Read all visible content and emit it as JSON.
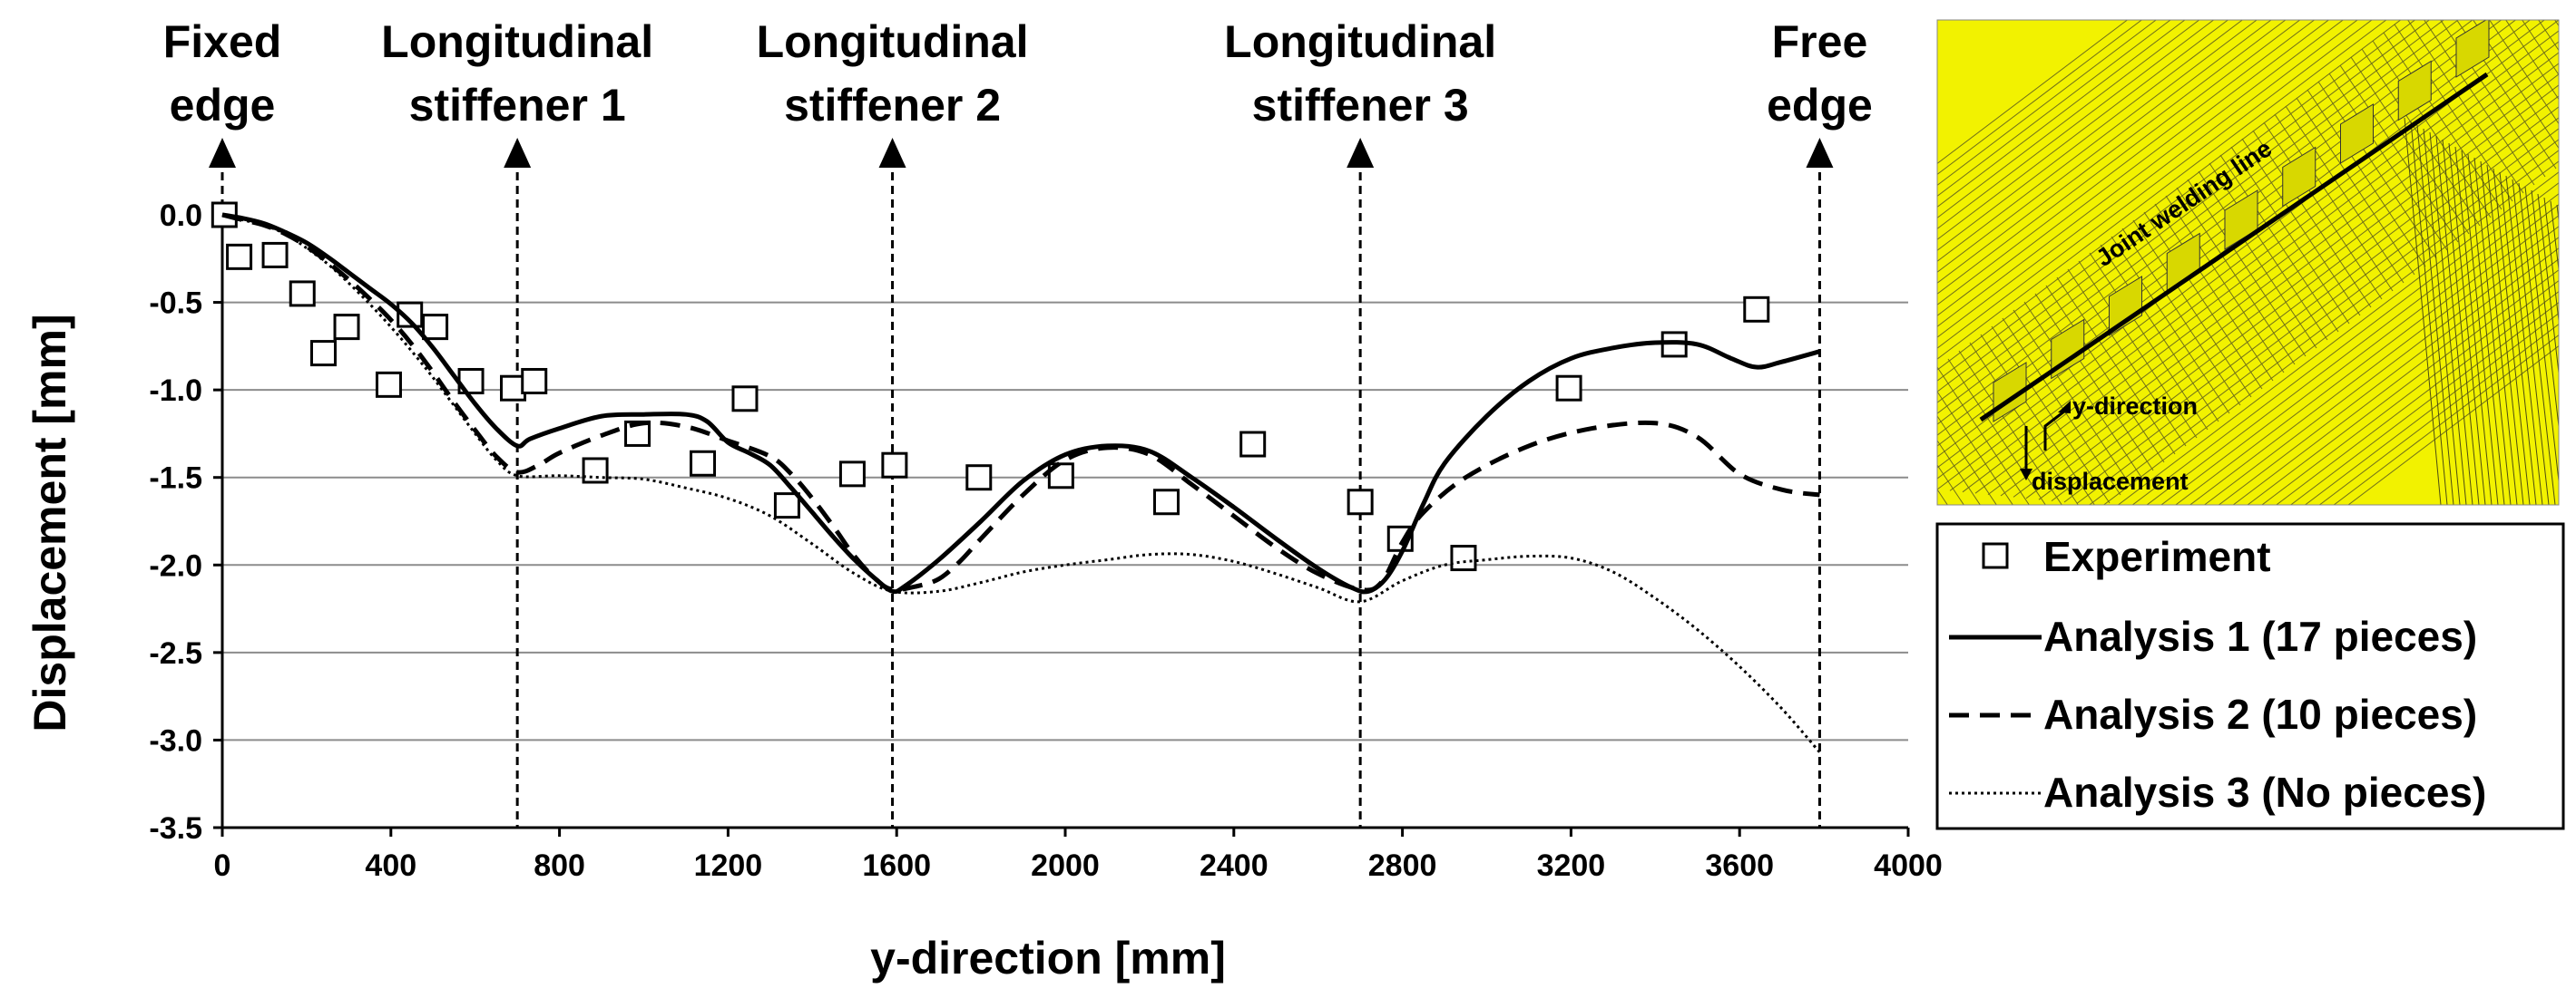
{
  "chart_data": {
    "type": "line",
    "xlabel": "y-direction [mm]",
    "ylabel": "Displacement [mm]",
    "xlim": [
      0,
      4000
    ],
    "ylim": [
      -3.5,
      0
    ],
    "x_ticks": [
      "0",
      "400",
      "800",
      "1200",
      "1600",
      "2000",
      "2400",
      "2800",
      "3200",
      "3600",
      "4000"
    ],
    "y_ticks": [
      "0.0",
      "-0.5",
      "-1.0",
      "-1.5",
      "-2.0",
      "-2.5",
      "-3.0",
      "-3.5"
    ],
    "markers": [
      {
        "x": 0,
        "lines": [
          "Fixed",
          "edge"
        ]
      },
      {
        "x": 700,
        "lines": [
          "Longitudinal",
          "stiffener 1"
        ]
      },
      {
        "x": 1590,
        "lines": [
          "Longitudinal",
          "stiffener 2"
        ]
      },
      {
        "x": 2700,
        "lines": [
          "Longitudinal",
          "stiffener 3"
        ]
      },
      {
        "x": 3790,
        "lines": [
          "Free",
          "edge"
        ]
      }
    ],
    "series": [
      {
        "name": "Experiment",
        "style": "square",
        "points": [
          [
            5,
            0.0
          ],
          [
            40,
            -0.24
          ],
          [
            125,
            -0.23
          ],
          [
            190,
            -0.45
          ],
          [
            240,
            -0.79
          ],
          [
            295,
            -0.64
          ],
          [
            395,
            -0.97
          ],
          [
            445,
            -0.57
          ],
          [
            505,
            -0.64
          ],
          [
            590,
            -0.95
          ],
          [
            690,
            -0.99
          ],
          [
            740,
            -0.95
          ],
          [
            885,
            -1.46
          ],
          [
            985,
            -1.25
          ],
          [
            1140,
            -1.42
          ],
          [
            1240,
            -1.05
          ],
          [
            1340,
            -1.66
          ],
          [
            1495,
            -1.48
          ],
          [
            1595,
            -1.43
          ],
          [
            1795,
            -1.5
          ],
          [
            1990,
            -1.49
          ],
          [
            2240,
            -1.64
          ],
          [
            2445,
            -1.31
          ],
          [
            2700,
            -1.64
          ],
          [
            2795,
            -1.85
          ],
          [
            2945,
            -1.96
          ],
          [
            3195,
            -0.99
          ],
          [
            3445,
            -0.74
          ],
          [
            3640,
            -0.54
          ]
        ]
      },
      {
        "name": "Analysis 1 (17 pieces)",
        "style": "solid",
        "points": [
          [
            0,
            0.0
          ],
          [
            50,
            -0.02
          ],
          [
            100,
            -0.05
          ],
          [
            150,
            -0.1
          ],
          [
            200,
            -0.16
          ],
          [
            250,
            -0.24
          ],
          [
            300,
            -0.33
          ],
          [
            350,
            -0.42
          ],
          [
            400,
            -0.51
          ],
          [
            450,
            -0.62
          ],
          [
            500,
            -0.76
          ],
          [
            550,
            -0.92
          ],
          [
            600,
            -1.08
          ],
          [
            650,
            -1.22
          ],
          [
            700,
            -1.32
          ],
          [
            730,
            -1.28
          ],
          [
            800,
            -1.22
          ],
          [
            900,
            -1.15
          ],
          [
            1000,
            -1.14
          ],
          [
            1100,
            -1.14
          ],
          [
            1150,
            -1.18
          ],
          [
            1200,
            -1.3
          ],
          [
            1250,
            -1.36
          ],
          [
            1300,
            -1.43
          ],
          [
            1350,
            -1.56
          ],
          [
            1400,
            -1.7
          ],
          [
            1450,
            -1.84
          ],
          [
            1500,
            -1.97
          ],
          [
            1550,
            -2.08
          ],
          [
            1590,
            -2.15
          ],
          [
            1620,
            -2.12
          ],
          [
            1700,
            -1.97
          ],
          [
            1800,
            -1.75
          ],
          [
            1900,
            -1.52
          ],
          [
            2000,
            -1.37
          ],
          [
            2100,
            -1.32
          ],
          [
            2200,
            -1.35
          ],
          [
            2300,
            -1.5
          ],
          [
            2400,
            -1.67
          ],
          [
            2500,
            -1.85
          ],
          [
            2600,
            -2.02
          ],
          [
            2680,
            -2.13
          ],
          [
            2720,
            -2.15
          ],
          [
            2760,
            -2.08
          ],
          [
            2800,
            -1.92
          ],
          [
            2850,
            -1.65
          ],
          [
            2900,
            -1.42
          ],
          [
            3000,
            -1.15
          ],
          [
            3100,
            -0.95
          ],
          [
            3200,
            -0.82
          ],
          [
            3300,
            -0.76
          ],
          [
            3400,
            -0.73
          ],
          [
            3500,
            -0.74
          ],
          [
            3580,
            -0.82
          ],
          [
            3640,
            -0.87
          ],
          [
            3700,
            -0.84
          ],
          [
            3790,
            -0.78
          ]
        ]
      },
      {
        "name": "Analysis 2 (10 pieces)",
        "style": "dashed",
        "points": [
          [
            0,
            0.0
          ],
          [
            50,
            -0.03
          ],
          [
            100,
            -0.06
          ],
          [
            150,
            -0.11
          ],
          [
            200,
            -0.18
          ],
          [
            250,
            -0.27
          ],
          [
            300,
            -0.37
          ],
          [
            350,
            -0.48
          ],
          [
            400,
            -0.6
          ],
          [
            450,
            -0.74
          ],
          [
            500,
            -0.9
          ],
          [
            550,
            -1.07
          ],
          [
            600,
            -1.23
          ],
          [
            650,
            -1.38
          ],
          [
            700,
            -1.47
          ],
          [
            750,
            -1.43
          ],
          [
            800,
            -1.36
          ],
          [
            900,
            -1.26
          ],
          [
            1000,
            -1.19
          ],
          [
            1100,
            -1.21
          ],
          [
            1200,
            -1.29
          ],
          [
            1300,
            -1.38
          ],
          [
            1350,
            -1.48
          ],
          [
            1400,
            -1.62
          ],
          [
            1450,
            -1.78
          ],
          [
            1500,
            -1.95
          ],
          [
            1550,
            -2.08
          ],
          [
            1590,
            -2.14
          ],
          [
            1650,
            -2.12
          ],
          [
            1700,
            -2.08
          ],
          [
            1750,
            -1.98
          ],
          [
            1800,
            -1.85
          ],
          [
            1900,
            -1.6
          ],
          [
            2000,
            -1.4
          ],
          [
            2100,
            -1.33
          ],
          [
            2200,
            -1.37
          ],
          [
            2300,
            -1.54
          ],
          [
            2400,
            -1.72
          ],
          [
            2500,
            -1.9
          ],
          [
            2600,
            -2.05
          ],
          [
            2700,
            -2.14
          ],
          [
            2750,
            -2.1
          ],
          [
            2800,
            -1.87
          ],
          [
            2850,
            -1.7
          ],
          [
            2950,
            -1.5
          ],
          [
            3100,
            -1.32
          ],
          [
            3250,
            -1.22
          ],
          [
            3400,
            -1.19
          ],
          [
            3500,
            -1.27
          ],
          [
            3600,
            -1.48
          ],
          [
            3700,
            -1.57
          ],
          [
            3790,
            -1.6
          ]
        ]
      },
      {
        "name": "Analysis 3 (No pieces)",
        "style": "dotted",
        "points": [
          [
            0,
            0.0
          ],
          [
            50,
            -0.03
          ],
          [
            100,
            -0.06
          ],
          [
            150,
            -0.11
          ],
          [
            200,
            -0.19
          ],
          [
            250,
            -0.28
          ],
          [
            300,
            -0.39
          ],
          [
            350,
            -0.51
          ],
          [
            400,
            -0.64
          ],
          [
            450,
            -0.78
          ],
          [
            500,
            -0.93
          ],
          [
            550,
            -1.09
          ],
          [
            600,
            -1.25
          ],
          [
            650,
            -1.4
          ],
          [
            700,
            -1.49
          ],
          [
            800,
            -1.49
          ],
          [
            900,
            -1.5
          ],
          [
            1000,
            -1.51
          ],
          [
            1100,
            -1.56
          ],
          [
            1200,
            -1.62
          ],
          [
            1300,
            -1.72
          ],
          [
            1400,
            -1.88
          ],
          [
            1500,
            -2.05
          ],
          [
            1590,
            -2.15
          ],
          [
            1700,
            -2.15
          ],
          [
            1800,
            -2.1
          ],
          [
            1900,
            -2.04
          ],
          [
            2000,
            -2.0
          ],
          [
            2100,
            -1.97
          ],
          [
            2200,
            -1.94
          ],
          [
            2300,
            -1.94
          ],
          [
            2400,
            -1.98
          ],
          [
            2500,
            -2.05
          ],
          [
            2600,
            -2.13
          ],
          [
            2700,
            -2.21
          ],
          [
            2800,
            -2.09
          ],
          [
            2900,
            -2.0
          ],
          [
            3000,
            -1.97
          ],
          [
            3100,
            -1.95
          ],
          [
            3200,
            -1.96
          ],
          [
            3300,
            -2.04
          ],
          [
            3400,
            -2.19
          ],
          [
            3500,
            -2.37
          ],
          [
            3600,
            -2.58
          ],
          [
            3700,
            -2.82
          ],
          [
            3790,
            -3.07
          ]
        ]
      }
    ]
  },
  "inset": {
    "welding_label": "Joint welding line",
    "y_direction_label": "y-direction",
    "displacement_label": "displacement",
    "mesh_color": "#f2f200",
    "mesh_line_color": "#6f6f1a"
  }
}
